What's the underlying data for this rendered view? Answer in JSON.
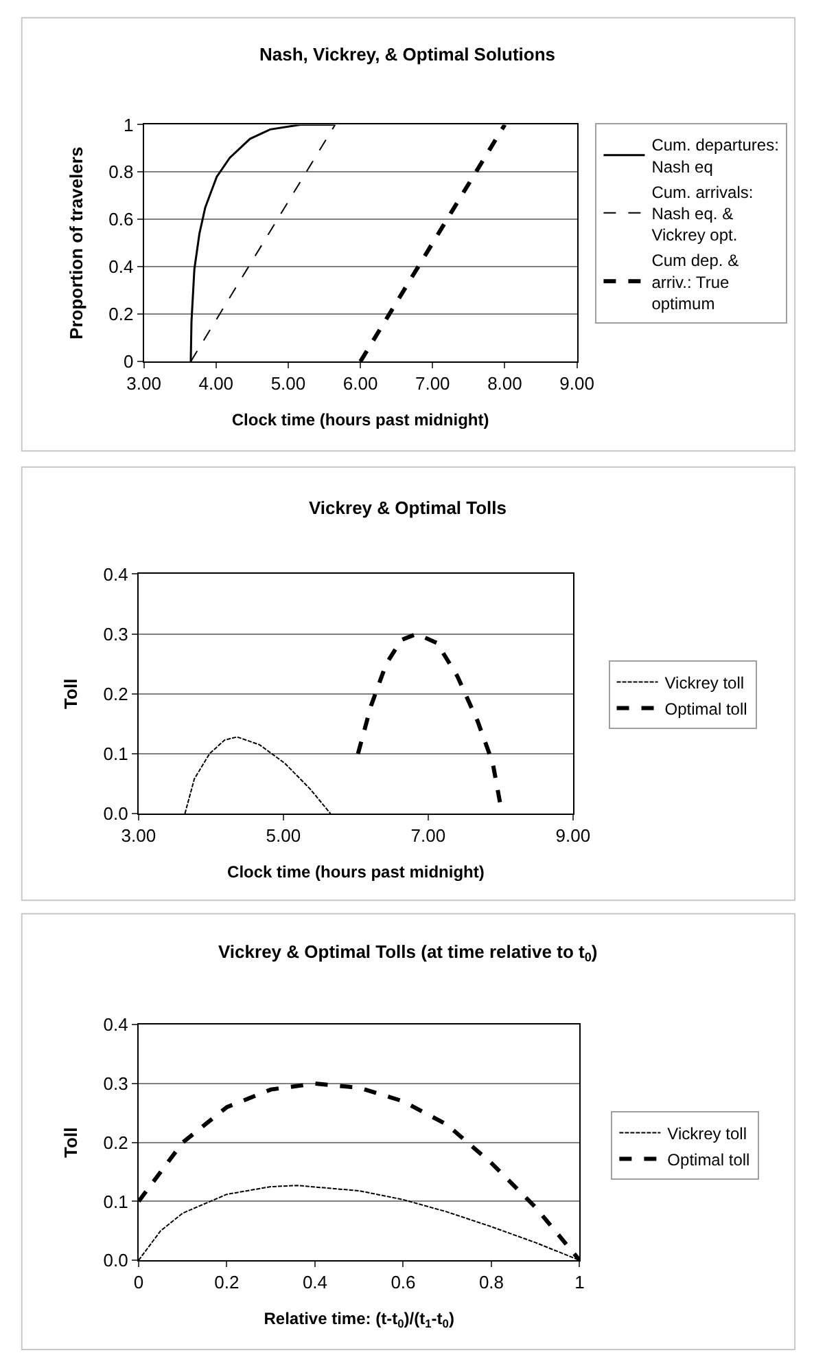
{
  "chart_data": [
    {
      "type": "line",
      "title": "Nash, Vickrey, & Optimal Solutions",
      "xlabel": "Clock time (hours past midnight)",
      "ylabel": "Proportion of travelers",
      "xlim": [
        3,
        9
      ],
      "xticks": [
        {
          "value": 3,
          "label": "3.00"
        },
        {
          "value": 4,
          "label": "4.00"
        },
        {
          "value": 5,
          "label": "5.00"
        },
        {
          "value": 6,
          "label": "6.00"
        },
        {
          "value": 7,
          "label": "7.00"
        },
        {
          "value": 8,
          "label": "8.00"
        },
        {
          "value": 9,
          "label": "9.00"
        }
      ],
      "ylim": [
        0,
        1
      ],
      "yticks": [
        0,
        0.2,
        0.4,
        0.6,
        0.8,
        1
      ],
      "grid": "y",
      "legend": "right",
      "marker": "none",
      "series": [
        {
          "name": "Cum. departures: Nash eq",
          "color": "#000000",
          "line_style": "solid",
          "x": [
            3.65,
            3.66,
            3.7,
            3.77,
            3.85,
            4.01,
            4.19,
            4.47,
            4.75,
            5.17,
            5.64
          ],
          "values": [
            0,
            0.17,
            0.39,
            0.54,
            0.65,
            0.78,
            0.86,
            0.94,
            0.98,
            1.0,
            1.0
          ]
        },
        {
          "name": "Cum. arrivals: Nash eq. & Vickrey opt.",
          "color": "#000000",
          "line_style": "dashed",
          "x": [
            3.65,
            5.65
          ],
          "values": [
            0,
            1
          ]
        },
        {
          "name": "Cum dep. & arriv.: True optimum",
          "color": "#000000",
          "line_style": "dashed",
          "x": [
            6.0,
            8.0
          ],
          "values": [
            0,
            1
          ]
        }
      ]
    },
    {
      "type": "line",
      "title": "Vickrey & Optimal Tolls",
      "xlabel": "Clock time (hours past midnight)",
      "ylabel": "Toll",
      "xlim": [
        3,
        9
      ],
      "xticks": [
        {
          "value": 3,
          "label": "3.00"
        },
        {
          "value": 5,
          "label": "5.00"
        },
        {
          "value": 7,
          "label": "7.00"
        },
        {
          "value": 9,
          "label": "9.00"
        }
      ],
      "ylim": [
        0,
        0.4
      ],
      "yticks": [
        {
          "value": 0,
          "label": "0.0"
        },
        0.1,
        0.2,
        0.3,
        0.4
      ],
      "grid": "y",
      "legend": "right",
      "marker": "none",
      "series": [
        {
          "name": "Vickrey toll",
          "color": "#000000",
          "line_style": "dotted",
          "x": [
            3.64,
            3.77,
            3.98,
            4.19,
            4.36,
            4.67,
            5.02,
            5.37,
            5.65
          ],
          "values": [
            0,
            0.058,
            0.1,
            0.123,
            0.128,
            0.115,
            0.084,
            0.041,
            0
          ]
        },
        {
          "name": "Optimal toll",
          "color": "#000000",
          "line_style": "dashed",
          "x": [
            6.03,
            6.21,
            6.42,
            6.63,
            6.84,
            7.12,
            7.4,
            7.68,
            7.89,
            8.02
          ],
          "values": [
            0.1,
            0.18,
            0.25,
            0.29,
            0.3,
            0.285,
            0.23,
            0.155,
            0.085,
            0
          ]
        }
      ]
    },
    {
      "type": "line",
      "title": "Vickrey & Optimal Tolls (at time relative to t$_{0}$)",
      "xlabel": "Relative time: (t-t$_{0}$)/(t$_{1}$-t$_{0}$)",
      "ylabel": "Toll",
      "xlim": [
        0,
        1
      ],
      "xticks": [
        0,
        0.2,
        0.4,
        0.6,
        0.8,
        1
      ],
      "ylim": [
        0,
        0.4
      ],
      "yticks": [
        {
          "value": 0,
          "label": "0.0"
        },
        0.1,
        0.2,
        0.3,
        0.4
      ],
      "grid": "y",
      "legend": "right",
      "marker": "none",
      "series": [
        {
          "name": "Vickrey toll",
          "color": "#000000",
          "line_style": "dotted",
          "x": [
            0,
            0.05,
            0.1,
            0.2,
            0.3,
            0.36,
            0.5,
            0.6,
            0.7,
            0.8,
            0.9,
            1
          ],
          "values": [
            0,
            0.05,
            0.08,
            0.112,
            0.125,
            0.127,
            0.118,
            0.103,
            0.082,
            0.057,
            0.03,
            0
          ]
        },
        {
          "name": "Optimal toll",
          "color": "#000000",
          "line_style": "dashed",
          "x": [
            0,
            0.1,
            0.2,
            0.3,
            0.4,
            0.5,
            0.6,
            0.7,
            0.8,
            0.9,
            1
          ],
          "values": [
            0.1,
            0.2,
            0.26,
            0.29,
            0.3,
            0.293,
            0.27,
            0.23,
            0.165,
            0.09,
            0
          ]
        }
      ]
    }
  ]
}
